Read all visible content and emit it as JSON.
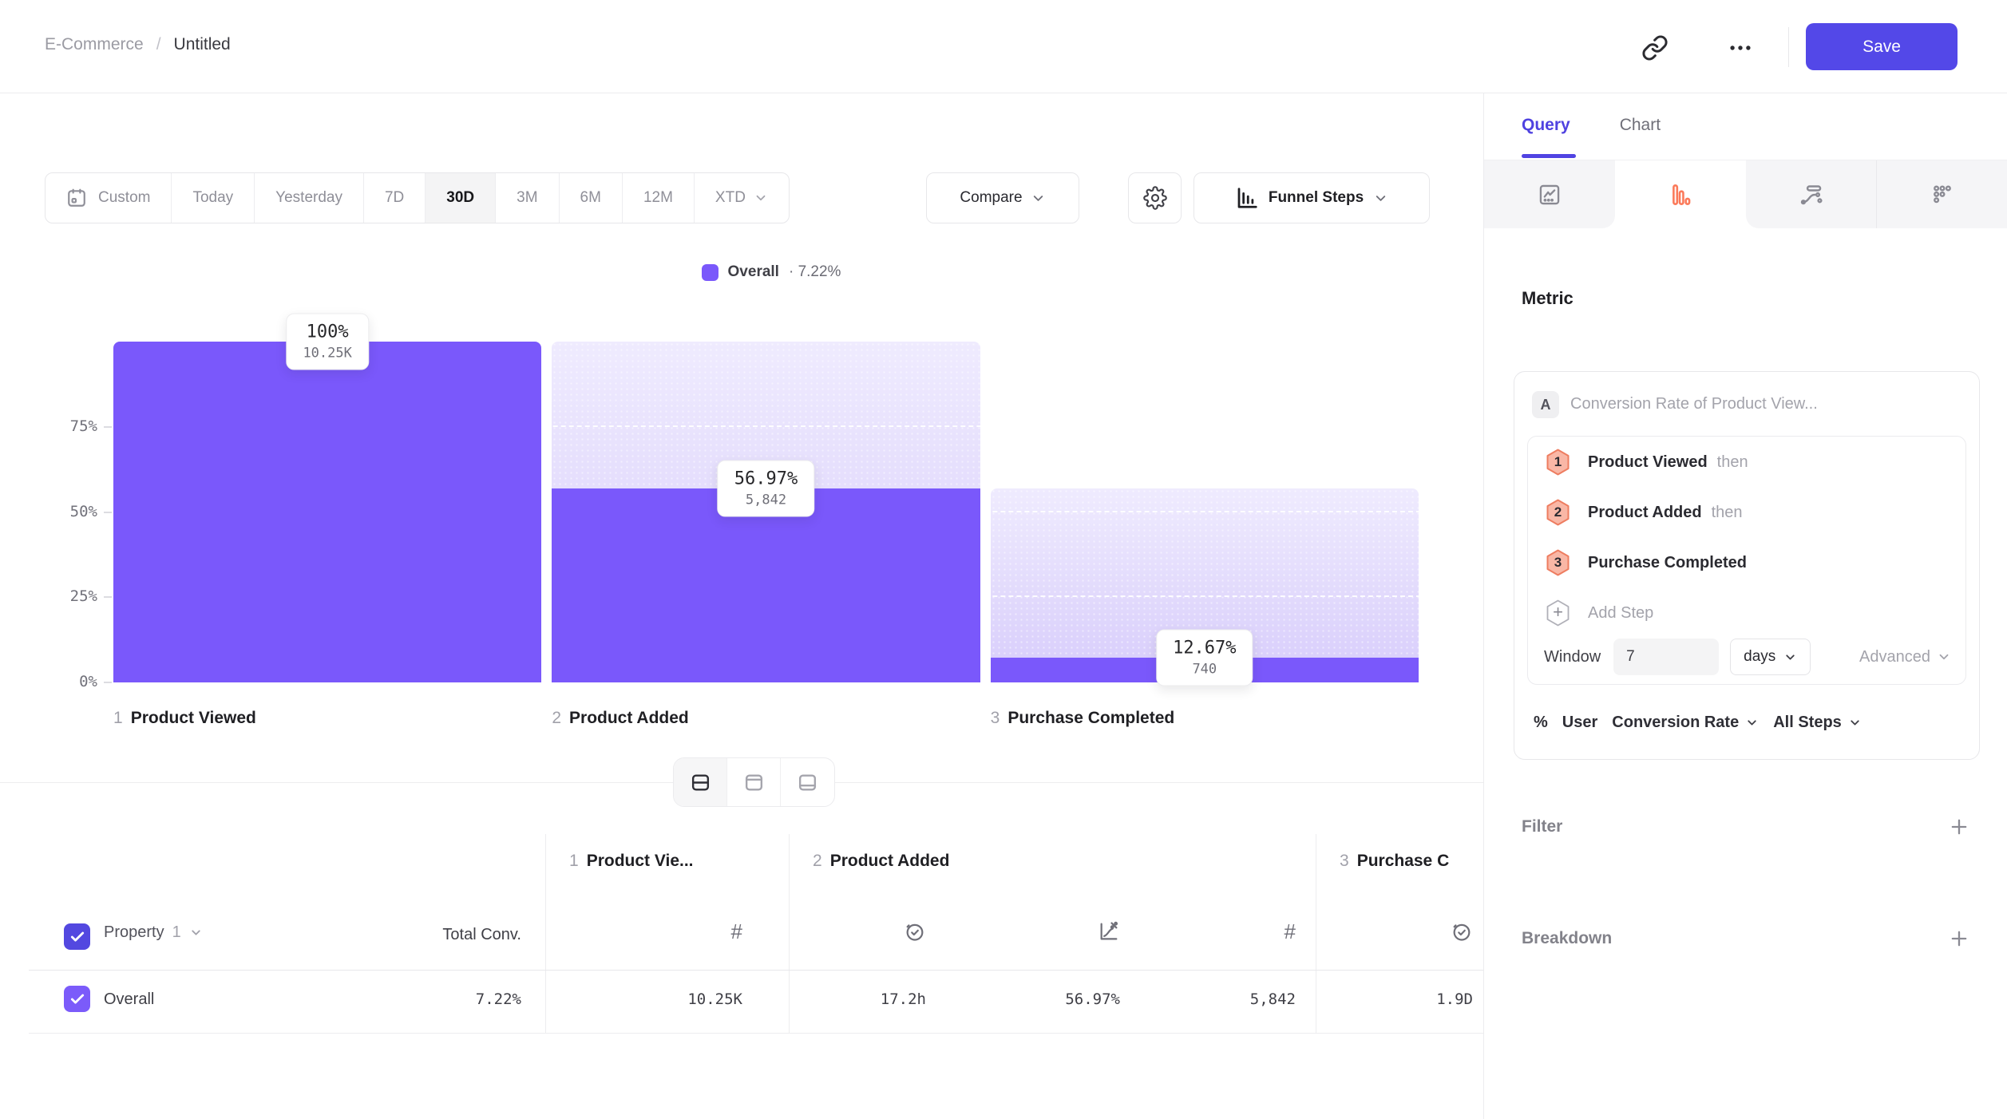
{
  "topbar": {
    "breadcrumb": {
      "parent": "E-Commerce",
      "separator": "/",
      "current": "Untitled"
    },
    "save_label": "Save",
    "icons": [
      "link-icon",
      "ellipsis-icon"
    ]
  },
  "toolbar": {
    "ranges": [
      {
        "label": "Custom",
        "icon": "calendar-icon"
      },
      {
        "label": "Today"
      },
      {
        "label": "Yesterday"
      },
      {
        "label": "7D"
      },
      {
        "label": "30D"
      },
      {
        "label": "3M"
      },
      {
        "label": "6M"
      },
      {
        "label": "12M"
      },
      {
        "label": "XTD",
        "icon": "chevron-down-icon"
      }
    ],
    "active_range": "30D",
    "compare_label": "Compare",
    "settings_icon": "gear-icon",
    "chart_type_button": {
      "label": "Funnel Steps",
      "icon": "funnel-axis-icon"
    }
  },
  "legend": {
    "series": "Overall",
    "separator": "·",
    "value": "7.22%",
    "color": "#7a58fb"
  },
  "chart_data": {
    "type": "bar",
    "subtype": "funnel-steps",
    "title": "Overall conversion funnel",
    "categories": [
      "Product Viewed",
      "Product Added",
      "Purchase Completed"
    ],
    "series": [
      {
        "name": "Overall",
        "overall_conversion": "7.22%"
      }
    ],
    "steps": [
      {
        "index": "1",
        "label": "Product Viewed",
        "conversion_label": "100%",
        "count_label": "10.25K",
        "count": 10250,
        "solid_pct": 100,
        "entry_pct": 100
      },
      {
        "index": "2",
        "label": "Product Added",
        "conversion_label": "56.97%",
        "count_label": "5,842",
        "count": 5842,
        "solid_pct": 56.97,
        "entry_pct": 100
      },
      {
        "index": "3",
        "label": "Purchase Completed",
        "conversion_label": "12.67%",
        "count_label": "740",
        "count": 740,
        "solid_pct": 7.22,
        "entry_pct": 56.97
      }
    ],
    "y_ticks": [
      {
        "pct": 0,
        "label": "0%"
      },
      {
        "pct": 25,
        "label": "25%"
      },
      {
        "pct": 50,
        "label": "50%"
      },
      {
        "pct": 75,
        "label": "75%"
      }
    ],
    "ylim": [
      0,
      100
    ],
    "grid": "dashed at 25/50/75",
    "bar_color": "#7a58fb"
  },
  "layout_toggle": {
    "options": [
      "split-rows-icon",
      "panel-top-icon",
      "panel-bottom-icon"
    ],
    "active_index": 0
  },
  "table": {
    "property_header": {
      "label": "Property",
      "number": "1",
      "checked": true
    },
    "total_conv_header": "Total Conv.",
    "groups": [
      {
        "index": "1",
        "label": "Product Vie...",
        "cols": [
          {
            "icon": "hash-icon"
          }
        ]
      },
      {
        "index": "2",
        "label": "Product Added",
        "cols": [
          {
            "icon": "clock-check-icon"
          },
          {
            "icon": "chart-percent-icon"
          },
          {
            "icon": "hash-icon"
          }
        ]
      },
      {
        "index": "3",
        "label": "Purchase C",
        "cols": [
          {
            "icon": "clock-check-icon"
          }
        ]
      }
    ],
    "rows": [
      {
        "name": "Overall",
        "checked": true,
        "total_conv": "7.22%",
        "values": [
          "10.25K",
          "17.2h",
          "56.97%",
          "5,842",
          "1.9D"
        ]
      }
    ]
  },
  "panel": {
    "tabs": [
      {
        "label": "Query",
        "active": true
      },
      {
        "label": "Chart",
        "active": false
      }
    ],
    "chart_type_tabs": {
      "icons": [
        "line-chart-icon",
        "funnel-bars-icon",
        "sankey-icon",
        "dot-grid-icon"
      ],
      "active_index": 1,
      "active_color": "#fb7a5a"
    },
    "metric_heading": "Metric",
    "metric": {
      "badge": "A",
      "title": "Conversion Rate of Product View...",
      "steps": [
        {
          "num": "1",
          "label": "Product Viewed",
          "suffix": "then"
        },
        {
          "num": "2",
          "label": "Product Added",
          "suffix": "then"
        },
        {
          "num": "3",
          "label": "Purchase Completed",
          "suffix": ""
        }
      ],
      "add_step_label": "Add Step",
      "window": {
        "label": "Window",
        "value": "7",
        "unit": "days"
      },
      "advanced_label": "Advanced",
      "measure": {
        "prefix": "%",
        "entity": "User",
        "metric": "Conversion Rate",
        "scope": "All Steps"
      }
    },
    "filter_label": "Filter",
    "breakdown_label": "Breakdown"
  }
}
